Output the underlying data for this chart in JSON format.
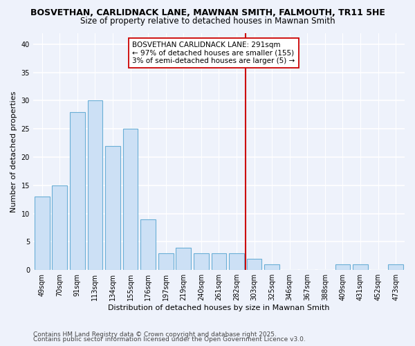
{
  "title": "BOSVETHAN, CARLIDNACK LANE, MAWNAN SMITH, FALMOUTH, TR11 5HE",
  "subtitle": "Size of property relative to detached houses in Mawnan Smith",
  "xlabel": "Distribution of detached houses by size in Mawnan Smith",
  "ylabel": "Number of detached properties",
  "categories": [
    "49sqm",
    "70sqm",
    "91sqm",
    "113sqm",
    "134sqm",
    "155sqm",
    "176sqm",
    "197sqm",
    "219sqm",
    "240sqm",
    "261sqm",
    "282sqm",
    "303sqm",
    "325sqm",
    "346sqm",
    "367sqm",
    "388sqm",
    "409sqm",
    "431sqm",
    "452sqm",
    "473sqm"
  ],
  "values": [
    13,
    15,
    28,
    30,
    22,
    25,
    9,
    3,
    4,
    3,
    3,
    3,
    2,
    1,
    0,
    0,
    0,
    1,
    1,
    0,
    1
  ],
  "bar_color": "#cce0f5",
  "bar_edge_color": "#6aaed6",
  "bg_color": "#eef2fb",
  "grid_color": "#ffffff",
  "ylim": [
    0,
    42
  ],
  "yticks": [
    0,
    5,
    10,
    15,
    20,
    25,
    30,
    35,
    40
  ],
  "annotation_text": "BOSVETHAN CARLIDNACK LANE: 291sqm\n← 97% of detached houses are smaller (155)\n3% of semi-detached houses are larger (5) →",
  "vline_pos": 11.5,
  "vline_color": "#cc0000",
  "annotation_box_color": "#ffffff",
  "annotation_box_edge": "#cc0000",
  "footer_line1": "Contains HM Land Registry data © Crown copyright and database right 2025.",
  "footer_line2": "Contains public sector information licensed under the Open Government Licence v3.0.",
  "title_fontsize": 9,
  "subtitle_fontsize": 8.5,
  "axis_label_fontsize": 8,
  "tick_fontsize": 7,
  "annotation_fontsize": 7.5,
  "footer_fontsize": 6.5
}
